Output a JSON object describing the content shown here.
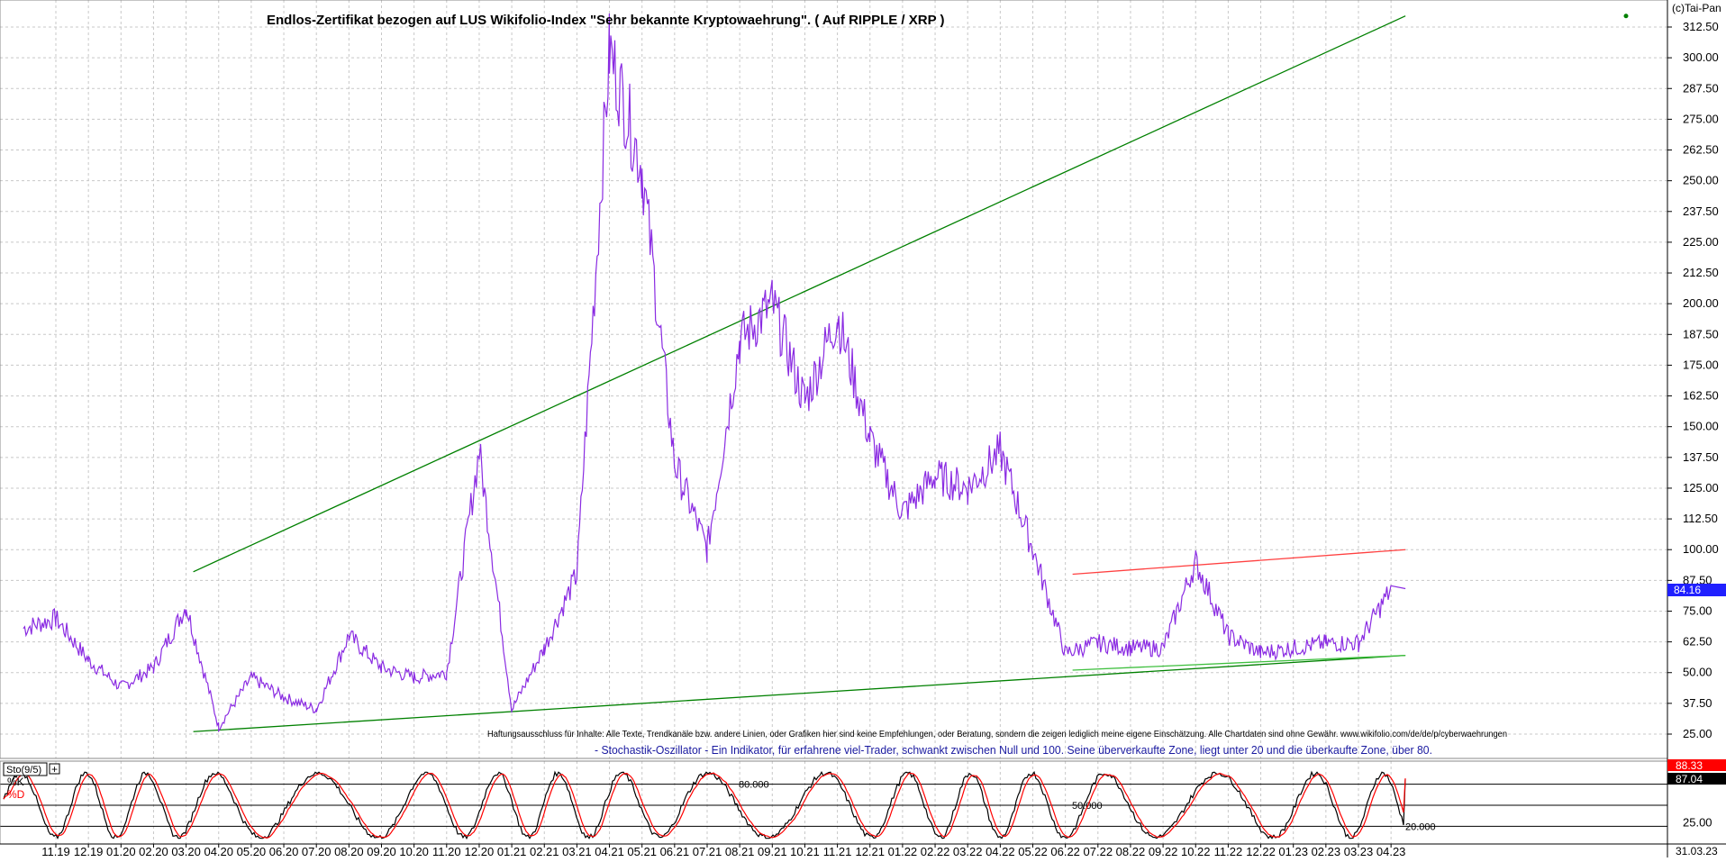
{
  "copyright": "(c)Tai-Pan",
  "chart_data": [
    {
      "type": "line",
      "title": "Endlos-Zertifikat bezogen auf LUS Wikifolio-Index \"Sehr bekannte Kryptowaehrung\". ( Auf RIPPLE / XRP )",
      "disclaimer": "Haftungsausschluss für Inhalte: Alle Texte, Trendkanäle bzw. andere Linien, oder Grafiken hier sind keine Empfehlungen, oder Beratung, sondern die zeigen lediglich meine eigene Einschätzung. Alle Chartdaten sind ohne Gewähr.  www.wikifolio.com/de/de/p/cyberwaehrungen",
      "ylim": [
        18,
        318
      ],
      "y_ticks": [
        "312.50",
        "300.00",
        "287.50",
        "275.00",
        "262.50",
        "250.00",
        "237.50",
        "225.00",
        "212.50",
        "200.00",
        "187.50",
        "175.00",
        "162.50",
        "150.00",
        "137.50",
        "125.00",
        "112.50",
        "100.00",
        "87.50",
        "75.00",
        "62.50",
        "50.00",
        "37.50",
        "25.00"
      ],
      "last_value_label": "84.16",
      "last_value": 84.16,
      "series": [
        {
          "color": "#8a2be2",
          "x": [
            "10.19",
            "11.19",
            "12.19",
            "01.20",
            "02.20",
            "03.20",
            "04.20",
            "05.20",
            "06.20",
            "07.20",
            "08.20",
            "09.20",
            "10.20",
            "11.20",
            "12.20",
            "01.21",
            "02.21",
            "03.21",
            "04.21",
            "05.21",
            "06.21",
            "07.21",
            "08.21",
            "09.21",
            "10.21",
            "11.21",
            "12.21",
            "01.22",
            "02.22",
            "03.22",
            "04.22",
            "05.22",
            "06.22",
            "07.22",
            "08.22",
            "09.22",
            "10.22",
            "11.22",
            "12.22",
            "01.23",
            "02.23",
            "03.23",
            "04.23"
          ],
          "values": [
            68,
            72,
            55,
            44,
            52,
            77,
            28,
            48,
            40,
            35,
            65,
            52,
            48,
            50,
            140,
            35,
            60,
            90,
            303,
            255,
            135,
            100,
            185,
            200,
            160,
            195,
            145,
            115,
            130,
            125,
            140,
            100,
            58,
            62,
            60,
            60,
            95,
            65,
            58,
            60,
            62,
            62,
            84
          ]
        }
      ],
      "trendlines": [
        {
          "color": "#008000",
          "from": [
            "03.20",
            91
          ],
          "to": [
            "04.23",
            317
          ]
        },
        {
          "color": "#008000",
          "from": [
            "03.20",
            26
          ],
          "to": [
            "04.23",
            57
          ]
        },
        {
          "color": "#ff4040",
          "from": [
            "06.22",
            90
          ],
          "to": [
            "04.23",
            100
          ]
        },
        {
          "color": "#40c040",
          "from": [
            "06.22",
            51
          ],
          "to": [
            "04.23",
            57
          ]
        }
      ]
    },
    {
      "type": "line",
      "title": "Sto(9/5)",
      "subtitle": "- Stochastik-Oszillator - Ein Indikator, für erfahrene viel-Trader, schwankt zwischen Null und 100. Seine überverkaufte Zone, liegt unter 20 und die überkaufte Zone, über 80.",
      "ylim": [
        0,
        100
      ],
      "y_ticks": [
        "25.00"
      ],
      "reference_lines": [
        {
          "value": 80,
          "label": "80.000"
        },
        {
          "value": 50,
          "label": "50.000"
        },
        {
          "value": 20,
          "label": "20.000"
        }
      ],
      "series": [
        {
          "name": "%K",
          "color": "#000000",
          "last_value_label": "87.04",
          "last_value": 87.04
        },
        {
          "name": "%D",
          "color": "#ff0000",
          "last_value_label": "88.33",
          "last_value": 88.33
        }
      ]
    }
  ],
  "x_axis": {
    "tick_labels": [
      "11.19",
      "12.19",
      "01.20",
      "02.20",
      "03.20",
      "04.20",
      "05.20",
      "06.20",
      "07.20",
      "08.20",
      "09.20",
      "10.20",
      "11.20",
      "12.20",
      "01.21",
      "02.21",
      "03.21",
      "04.21",
      "05.21",
      "06.21",
      "07.21",
      "08.21",
      "09.21",
      "10.21",
      "11.21",
      "12.21",
      "01.22",
      "02.22",
      "03.22",
      "04.22",
      "05.22",
      "06.22",
      "07.22",
      "08.22",
      "09.22",
      "10.22",
      "11.22",
      "12.22",
      "01.23",
      "02.23",
      "03.23",
      "04.23"
    ],
    "last_date_label": "31.03.23"
  }
}
